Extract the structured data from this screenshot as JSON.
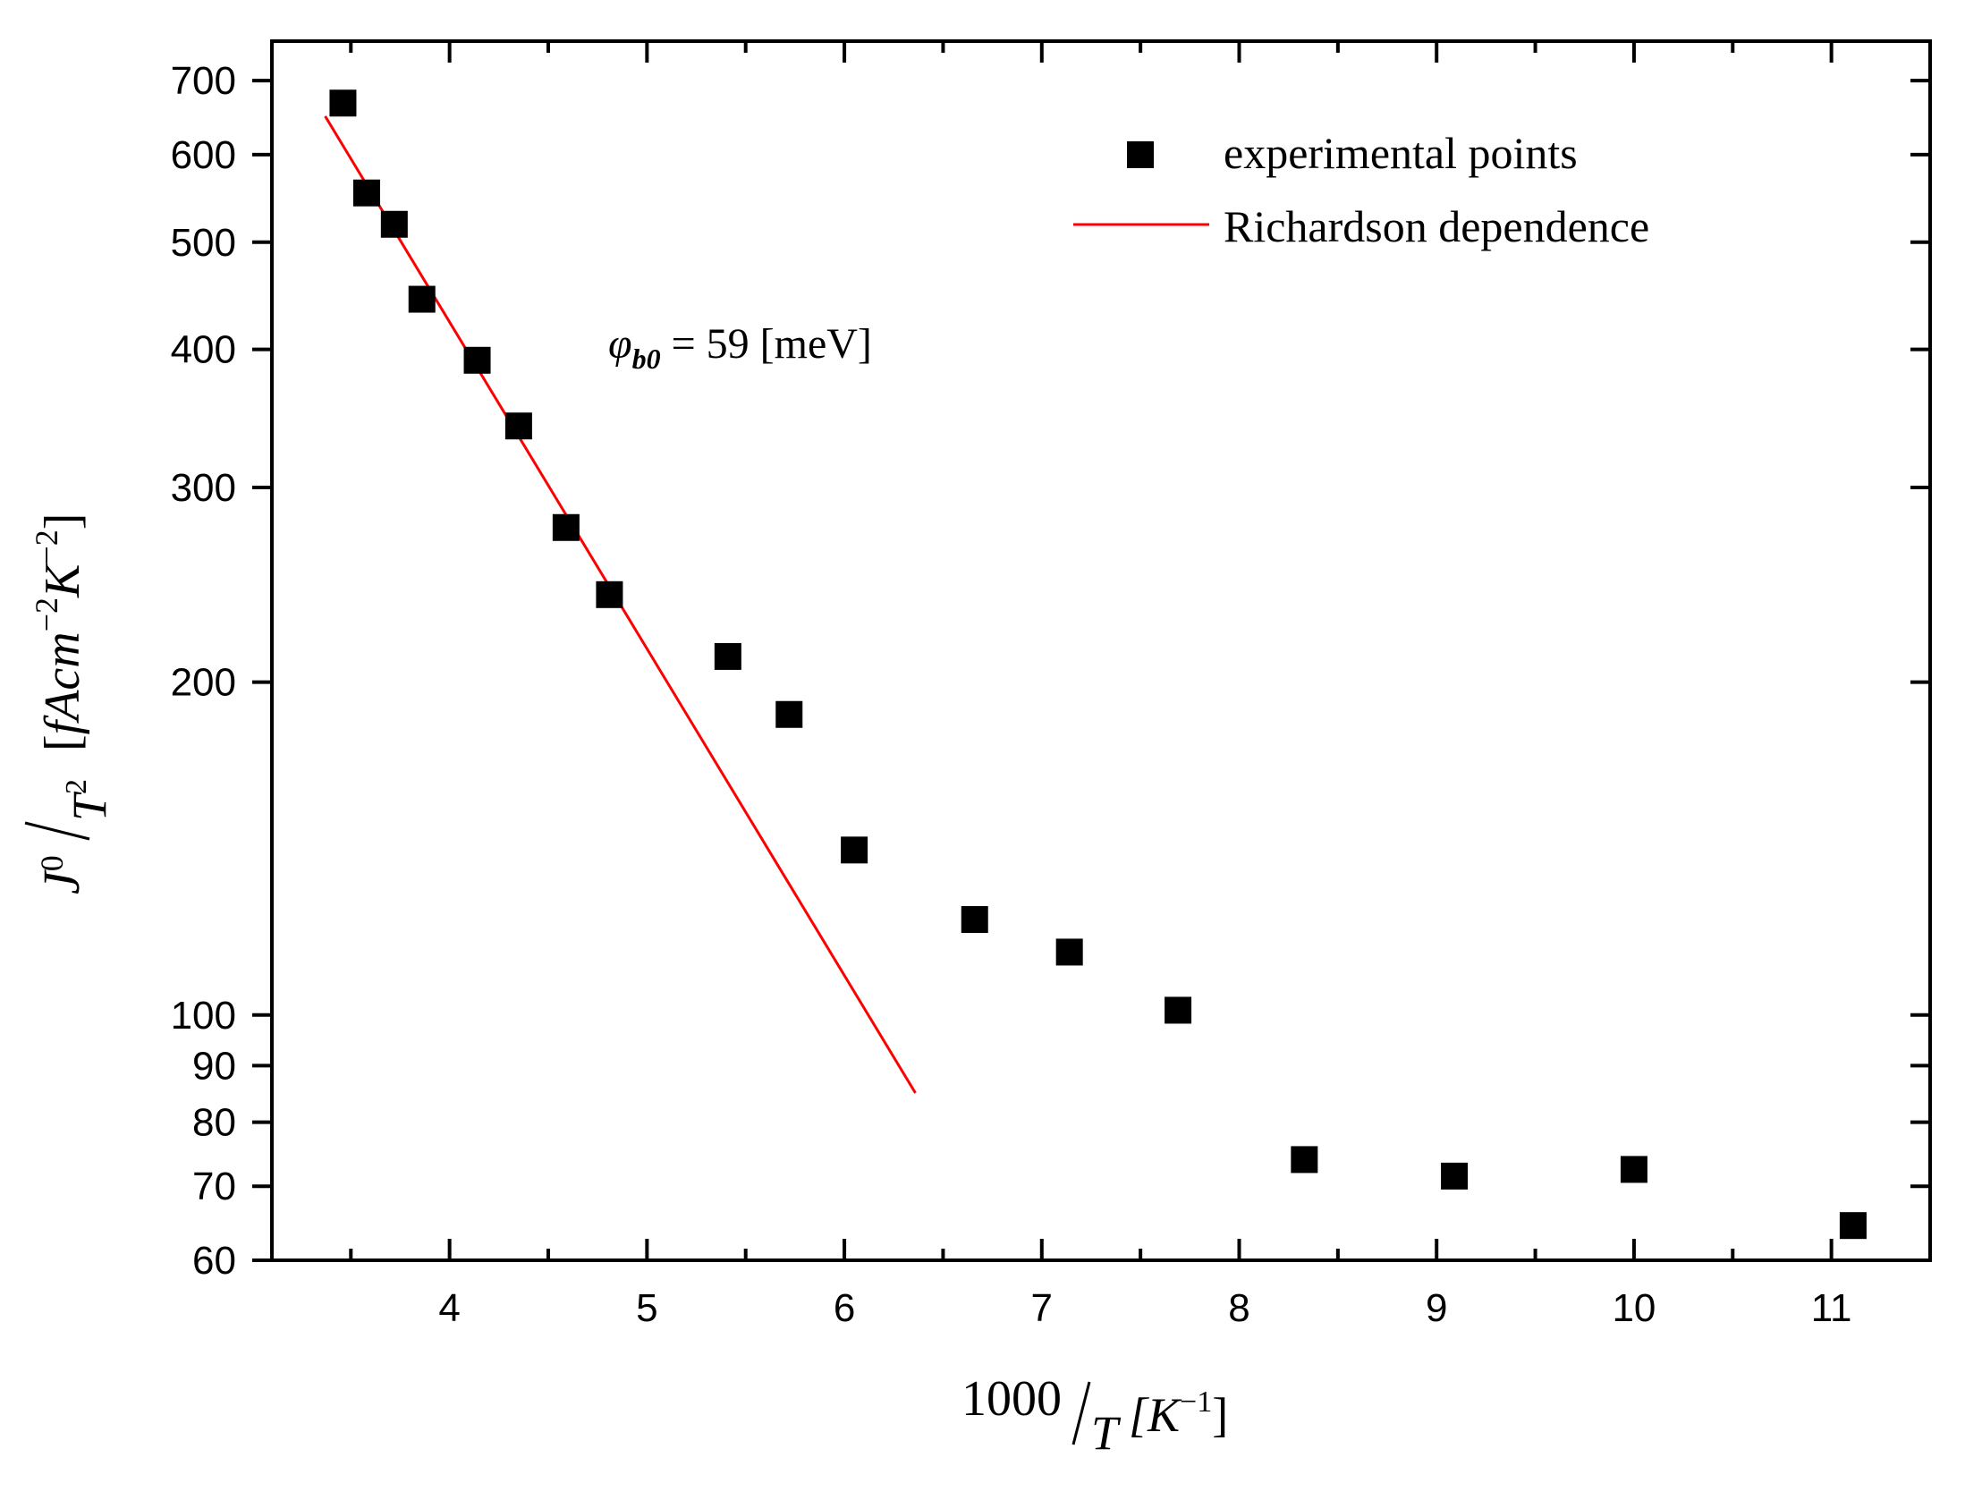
{
  "chart_data": {
    "type": "scatter",
    "title": "",
    "xlabel": {
      "main": "1000",
      "denominator": "T",
      "unit_open": "[K",
      "unit_exp": "−1",
      "unit_close": "]"
    },
    "ylabel": {
      "main": "J",
      "main_sub": "0",
      "denominator": "T",
      "den_exp": "2",
      "unit_open": "[",
      "unit_body": "fAcm",
      "unit_exp1": "−2",
      "unit_mid": "K",
      "unit_exp2": "−2",
      "unit_close": "]"
    },
    "x_axis": {
      "scale": "linear",
      "range": [
        3.1,
        11.5
      ],
      "ticks": [
        4,
        5,
        6,
        7,
        8,
        9,
        10,
        11
      ],
      "minor_ticks": [
        3.5,
        4.5,
        5.5,
        6.5,
        7.5,
        8.5,
        9.5,
        10.5,
        11.5
      ]
    },
    "y_axis": {
      "scale": "log",
      "range": [
        60,
        760
      ],
      "ticks": [
        60,
        70,
        80,
        90,
        100,
        200,
        300,
        400,
        500,
        600,
        700
      ]
    },
    "series": [
      {
        "name": "experimental points",
        "marker": "square",
        "color": "#000000",
        "x": [
          3.46,
          3.58,
          3.72,
          3.86,
          4.14,
          4.35,
          4.59,
          4.81,
          5.41,
          5.72,
          6.05,
          6.66,
          7.14,
          7.69,
          8.33,
          9.09,
          10.0,
          11.11
        ],
        "y": [
          668,
          554,
          519,
          444,
          391,
          341,
          276,
          240,
          211,
          187,
          141,
          122,
          114,
          101,
          74,
          71.5,
          72.5,
          64.5
        ]
      },
      {
        "name": "Richardson dependence",
        "type": "line",
        "color": "#ff0000",
        "x": [
          3.37,
          6.36
        ],
        "y": [
          650,
          85
        ]
      }
    ],
    "annotation": {
      "symbol": "φ",
      "sub": "b0",
      "text": " = 59 [meV]"
    },
    "legend_position": "top-right"
  }
}
